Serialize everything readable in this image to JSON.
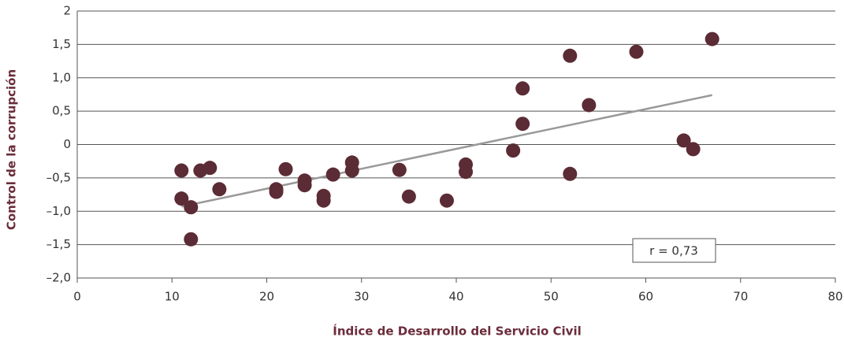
{
  "chart_data": {
    "type": "scatter",
    "x_label": "Índice de Desarrollo del Servicio Civil",
    "y_label": "Control de la corrupción",
    "x": [
      11,
      11,
      12,
      12,
      13,
      14,
      15,
      21,
      21,
      22,
      24,
      24,
      26,
      26,
      27,
      29,
      29,
      34,
      35,
      39,
      41,
      41,
      46,
      47,
      47,
      52,
      52,
      54,
      59,
      64,
      65,
      67
    ],
    "series": [
      {
        "color": "#5b2c35",
        "values": [
          -0.39,
          -0.81,
          -0.94,
          -1.42,
          -0.39,
          -0.35,
          -0.67,
          -0.67,
          -0.71,
          -0.37,
          -0.54,
          -0.61,
          -0.77,
          -0.84,
          -0.45,
          -0.27,
          -0.39,
          -0.38,
          -0.78,
          -0.84,
          -0.3,
          -0.41,
          -0.09,
          0.84,
          0.31,
          1.33,
          -0.44,
          0.59,
          1.39,
          0.06,
          -0.07,
          1.58
        ]
      }
    ],
    "trendline": {
      "x": [
        11,
        67
      ],
      "y": [
        -0.93,
        0.74
      ],
      "color": "#999999"
    },
    "annotation": "r = 0,73",
    "xlim": [
      0,
      80
    ],
    "xticks": [
      0,
      10,
      20,
      30,
      40,
      50,
      60,
      70,
      80
    ],
    "ylim": [
      -2,
      2
    ],
    "yticks": [
      {
        "value": -2,
        "label": "–2,0"
      },
      {
        "value": -1.5,
        "label": "–1,5"
      },
      {
        "value": -1,
        "label": "–1,0"
      },
      {
        "value": -0.5,
        "label": "–0,5"
      },
      0,
      {
        "value": 0.5,
        "label": "0,5"
      },
      {
        "value": 1,
        "label": "1,0"
      },
      {
        "value": 1.5,
        "label": "1,5"
      },
      2
    ],
    "grid": true
  }
}
